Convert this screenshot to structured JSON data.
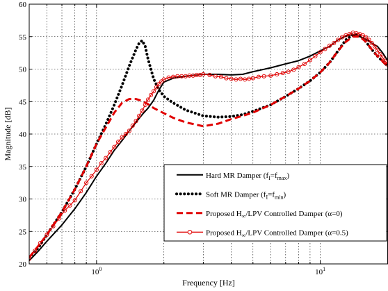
{
  "chart_data": {
    "type": "line",
    "title": "",
    "xlabel": "Frequency [Hz]",
    "ylabel": "Magnitude [dB]",
    "xscale": "log",
    "xlim": [
      0.5,
      20
    ],
    "ylim": [
      20,
      60
    ],
    "yticks": [
      20,
      25,
      30,
      35,
      40,
      45,
      50,
      55,
      60
    ],
    "xticks": [
      {
        "value": 1,
        "base": "10",
        "exp": "0"
      },
      {
        "value": 10,
        "base": "10",
        "exp": "1"
      }
    ],
    "grid": true,
    "legend_position": "bottom-right",
    "series": [
      {
        "label_parts": [
          [
            "Hard MR Damper (f",
            ""
          ],
          [
            "I",
            "sub"
          ],
          [
            "=f",
            ""
          ],
          [
            "max",
            "sub"
          ],
          [
            ")",
            ""
          ]
        ],
        "color": "#000000",
        "style": "solid",
        "marker": "none",
        "x": [
          0.5,
          0.55,
          0.6,
          0.7,
          0.8,
          0.9,
          1.0,
          1.1,
          1.2,
          1.3,
          1.4,
          1.5,
          1.6,
          1.7,
          1.8,
          1.9,
          2.0,
          2.2,
          2.5,
          3.0,
          3.5,
          4.0,
          4.5,
          5.0,
          6.0,
          7.0,
          8.0,
          9.0,
          10.0,
          11.0,
          12.0,
          13.0,
          14.0,
          15.0,
          16.0,
          17.0,
          18.0,
          19.0,
          20.0
        ],
        "y": [
          20.5,
          22.0,
          23.5,
          26.0,
          28.5,
          31.0,
          33.5,
          35.5,
          37.5,
          39.0,
          40.5,
          41.8,
          43.0,
          44.0,
          45.2,
          46.8,
          48.0,
          48.6,
          48.9,
          49.2,
          49.2,
          49.1,
          49.2,
          49.6,
          50.2,
          50.8,
          51.3,
          52.0,
          52.8,
          53.5,
          54.5,
          55.1,
          55.3,
          55.0,
          54.6,
          54.0,
          53.5,
          52.5,
          51.3
        ]
      },
      {
        "label_parts": [
          [
            "Soft MR Damper (f",
            ""
          ],
          [
            "I",
            "sub"
          ],
          [
            "=f",
            ""
          ],
          [
            "min",
            "sub"
          ],
          [
            ")",
            ""
          ]
        ],
        "color": "#000000",
        "style": "dotted",
        "marker": "none",
        "x": [
          0.5,
          0.55,
          0.6,
          0.7,
          0.8,
          0.9,
          1.0,
          1.1,
          1.2,
          1.3,
          1.4,
          1.5,
          1.55,
          1.6,
          1.65,
          1.7,
          1.8,
          1.9,
          2.0,
          2.2,
          2.5,
          3.0,
          3.5,
          4.0,
          4.5,
          5.0,
          6.0,
          7.0,
          8.0,
          9.0,
          10.0,
          11.0,
          12.0,
          13.0,
          14.0,
          15.0,
          16.0,
          17.0,
          18.0,
          19.0,
          20.0
        ],
        "y": [
          21.0,
          22.5,
          24.5,
          28.0,
          31.5,
          35.0,
          38.5,
          41.5,
          44.5,
          47.5,
          50.5,
          53.0,
          54.0,
          54.4,
          53.5,
          51.5,
          48.5,
          46.8,
          45.8,
          44.8,
          43.7,
          42.8,
          42.6,
          42.7,
          43.0,
          43.5,
          44.5,
          45.8,
          47.0,
          48.2,
          49.5,
          51.0,
          52.8,
          54.5,
          55.3,
          55.2,
          54.2,
          53.0,
          52.0,
          51.2,
          50.5
        ]
      },
      {
        "label_parts": [
          [
            "Proposed H",
            ""
          ],
          [
            "∞",
            "sub"
          ],
          [
            "/LPV Controlled Damper (α=0)",
            ""
          ]
        ],
        "color": "#e00000",
        "style": "dashed",
        "marker": "none",
        "x": [
          0.5,
          0.55,
          0.6,
          0.7,
          0.8,
          0.9,
          1.0,
          1.1,
          1.2,
          1.3,
          1.4,
          1.5,
          1.6,
          1.7,
          1.8,
          2.0,
          2.2,
          2.5,
          3.0,
          3.5,
          4.0,
          4.5,
          5.0,
          6.0,
          7.0,
          8.0,
          9.0,
          10.0,
          11.0,
          12.0,
          13.0,
          14.0,
          15.0,
          16.0,
          17.0,
          18.0,
          19.0,
          20.0
        ],
        "y": [
          21.0,
          22.8,
          24.5,
          28.0,
          31.5,
          35.0,
          38.5,
          41.0,
          43.3,
          44.8,
          45.4,
          45.4,
          45.1,
          44.6,
          44.0,
          43.2,
          42.5,
          41.8,
          41.2,
          41.6,
          42.3,
          42.8,
          43.3,
          44.5,
          45.8,
          47.0,
          48.2,
          49.5,
          51.0,
          52.8,
          54.2,
          55.0,
          55.0,
          54.2,
          53.0,
          52.0,
          51.2,
          50.3
        ]
      },
      {
        "label_parts": [
          [
            "Proposed H",
            ""
          ],
          [
            "∞",
            "sub"
          ],
          [
            "/LPV Controlled Damper (α=0.5)",
            ""
          ]
        ],
        "color": "#e00000",
        "style": "solid",
        "marker": "circle",
        "x": [
          0.5,
          0.53,
          0.56,
          0.6,
          0.64,
          0.68,
          0.72,
          0.76,
          0.8,
          0.85,
          0.9,
          0.95,
          1.0,
          1.05,
          1.1,
          1.15,
          1.2,
          1.25,
          1.3,
          1.35,
          1.4,
          1.45,
          1.5,
          1.55,
          1.6,
          1.65,
          1.7,
          1.75,
          1.8,
          1.85,
          1.9,
          1.95,
          2.0,
          2.1,
          2.2,
          2.3,
          2.4,
          2.5,
          2.6,
          2.7,
          2.8,
          2.9,
          3.0,
          3.2,
          3.4,
          3.6,
          3.8,
          4.0,
          4.2,
          4.4,
          4.6,
          4.8,
          5.0,
          5.3,
          5.6,
          6.0,
          6.4,
          6.8,
          7.2,
          7.6,
          8.0,
          8.5,
          9.0,
          9.5,
          10.0,
          10.5,
          11.0,
          11.5,
          12.0,
          12.5,
          13.0,
          13.5,
          14.0,
          14.5,
          15.0,
          15.5,
          16.0,
          16.5,
          17.0,
          17.5,
          18.0,
          18.5,
          19.0,
          19.5,
          20.0
        ],
        "y": [
          20.8,
          22.0,
          23.2,
          24.5,
          25.8,
          27.0,
          28.2,
          29.0,
          29.8,
          31.2,
          32.5,
          33.5,
          34.5,
          35.5,
          36.3,
          37.2,
          38.0,
          38.8,
          39.5,
          40.0,
          40.5,
          41.3,
          42.0,
          42.8,
          43.6,
          44.5,
          45.3,
          46.0,
          46.6,
          47.2,
          47.7,
          48.1,
          48.4,
          48.7,
          48.8,
          48.9,
          48.9,
          48.9,
          49.0,
          49.0,
          49.1,
          49.1,
          49.2,
          49.1,
          48.9,
          48.8,
          48.6,
          48.5,
          48.4,
          48.5,
          48.4,
          48.5,
          48.6,
          48.8,
          48.9,
          49.0,
          49.2,
          49.4,
          49.6,
          49.9,
          50.3,
          50.8,
          51.4,
          52.0,
          52.6,
          53.1,
          53.6,
          54.0,
          54.5,
          54.9,
          55.2,
          55.4,
          55.6,
          55.5,
          55.4,
          55.2,
          54.9,
          54.5,
          54.0,
          53.5,
          52.9,
          52.3,
          51.8,
          51.2,
          50.7
        ]
      }
    ]
  }
}
